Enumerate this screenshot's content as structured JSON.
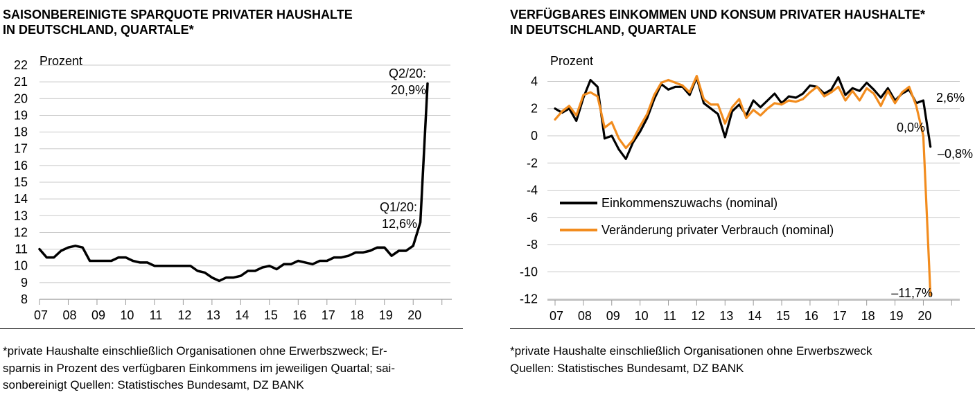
{
  "left_panel": {
    "title_lines": [
      "SAISONBEREINIGTE SPARQUOTE PRIVATER HAUSHALTE",
      "IN DEUTSCHLAND, QUARTALE*"
    ],
    "footnote_lines": [
      "*private Haushalte einschließlich Organisationen ohne Erwerbszweck; Er-",
      "sparnis in Prozent des verfügbaren Einkommens im jeweiligen Quartal; sai-",
      "sonbereinigt     Quellen: Statistisches Bundesamt, DZ BANK"
    ]
  },
  "right_panel": {
    "title_lines": [
      "VERFÜGBARES EINKOMMEN UND KONSUM PRIVATER HAUSHALTE*",
      "IN DEUTSCHLAND, QUARTALE"
    ],
    "footnote_lines": [
      "*private Haushalte einschließlich Organisationen ohne Erwerbszweck",
      "Quellen: Statistisches Bundesamt, DZ BANK"
    ]
  },
  "chart_data": [
    {
      "type": "line",
      "ylabel": "Prozent",
      "ylim": [
        8,
        22
      ],
      "yticks": [
        8,
        9,
        10,
        11,
        12,
        13,
        14,
        15,
        16,
        17,
        18,
        19,
        20,
        21,
        22
      ],
      "xticks": [
        "07",
        "08",
        "09",
        "10",
        "11",
        "12",
        "13",
        "14",
        "15",
        "16",
        "17",
        "18",
        "19",
        "20"
      ],
      "x_start": "2007Q1",
      "grid": true,
      "series": [
        {
          "color": "#000000",
          "values": [
            11.0,
            10.5,
            10.5,
            10.9,
            11.1,
            11.2,
            11.1,
            10.3,
            10.3,
            10.3,
            10.3,
            10.5,
            10.5,
            10.3,
            10.2,
            10.2,
            10.0,
            10.0,
            10.0,
            10.0,
            10.0,
            10.0,
            9.7,
            9.6,
            9.3,
            9.1,
            9.3,
            9.3,
            9.4,
            9.7,
            9.7,
            9.9,
            10.0,
            9.8,
            10.1,
            10.1,
            10.3,
            10.2,
            10.1,
            10.3,
            10.3,
            10.5,
            10.5,
            10.6,
            10.8,
            10.8,
            10.9,
            11.1,
            11.1,
            10.6,
            10.9,
            10.9,
            11.2,
            12.6,
            20.9
          ]
        }
      ],
      "annotations": [
        {
          "lines": [
            "Q2/20:",
            "20,9%"
          ],
          "x_index": 54,
          "y": 20.9
        },
        {
          "lines": [
            "Q1/20:",
            "12,6%"
          ],
          "x_index": 53,
          "y": 12.6
        }
      ]
    },
    {
      "type": "line",
      "ylabel": "Prozent",
      "ylim": [
        -12,
        4
      ],
      "yticks": [
        -12,
        -10,
        -8,
        -6,
        -4,
        -2,
        0,
        2,
        4
      ],
      "xticks": [
        "07",
        "08",
        "09",
        "10",
        "11",
        "12",
        "13",
        "14",
        "15",
        "16",
        "17",
        "18",
        "19",
        "20"
      ],
      "x_start": "2007Q1",
      "grid": true,
      "legend": "center-left",
      "series": [
        {
          "name": "Einkommenszuwachs (nominal)",
          "color": "#000000",
          "values": [
            2.0,
            1.7,
            2.0,
            1.1,
            2.8,
            4.1,
            3.6,
            -0.2,
            0.0,
            -1.0,
            -1.7,
            -0.5,
            0.3,
            1.3,
            2.7,
            3.8,
            3.4,
            3.6,
            3.6,
            3.0,
            4.3,
            2.4,
            2.0,
            1.6,
            -0.1,
            1.8,
            2.3,
            1.5,
            2.6,
            2.1,
            2.6,
            3.1,
            2.4,
            2.9,
            2.8,
            3.1,
            3.7,
            3.6,
            3.1,
            3.4,
            4.3,
            3.0,
            3.5,
            3.3,
            3.9,
            3.4,
            2.8,
            3.5,
            2.6,
            3.1,
            3.4,
            2.4,
            2.6,
            -0.8
          ]
        },
        {
          "name": "Veränderung privater Verbrauch (nominal)",
          "color": "#F28C1E",
          "values": [
            1.2,
            1.8,
            2.2,
            1.5,
            3.0,
            3.2,
            2.9,
            0.6,
            1.0,
            -0.2,
            -0.9,
            -0.3,
            0.7,
            1.6,
            3.0,
            3.9,
            4.1,
            3.9,
            3.7,
            3.2,
            4.4,
            2.7,
            2.3,
            2.3,
            0.9,
            2.1,
            2.7,
            1.3,
            1.9,
            1.5,
            2.0,
            2.4,
            2.3,
            2.6,
            2.5,
            2.7,
            3.2,
            3.6,
            2.9,
            3.2,
            3.6,
            2.6,
            3.3,
            2.6,
            3.5,
            3.1,
            2.2,
            3.3,
            2.4,
            3.2,
            3.6,
            2.2,
            0.0,
            -11.7
          ]
        }
      ],
      "annotations": [
        {
          "text": "2,6%",
          "x_index": 52,
          "y": 2.6
        },
        {
          "text": "0,0%",
          "x_index": 52,
          "y": 0.0
        },
        {
          "text": "–0,8%",
          "x_index": 53,
          "y": -0.8
        },
        {
          "text": "–11,7%",
          "x_index": 53,
          "y": -11.7
        }
      ]
    }
  ]
}
